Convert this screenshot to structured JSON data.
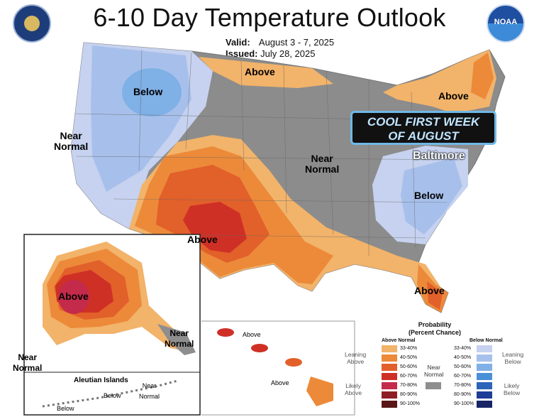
{
  "title": "6-10 Day Temperature Outlook",
  "valid_label": "Valid:",
  "valid_value": "August 3 - 7, 2025",
  "issued_label": "Issued:",
  "issued_value": "July 28, 2025",
  "noaa_logo": "NOAA",
  "banner": {
    "line1": "COOL FIRST WEEK",
    "line2": "OF AUGUST"
  },
  "labels": {
    "above_north": "Above",
    "below_nw": "Below",
    "near_normal_west_1": "Near",
    "near_normal_west_2": "Normal",
    "near_normal_central_1": "Near",
    "near_normal_central_2": "Normal",
    "above_northeast": "Above",
    "baltimore": "Baltimore",
    "below_east": "Below",
    "above_sw": "Above",
    "above_florida": "Above",
    "above_alaska": "Above",
    "near_normal_panhandle_1": "Near",
    "near_normal_panhandle_2": "Normal",
    "near_normal_ak_sw_1": "Near",
    "near_normal_ak_sw_2": "Normal",
    "aleutian_title": "Aleutian Islands",
    "aleutian_below_1": "Below",
    "aleutian_below_2": "Below",
    "aleutian_near_1": "Near",
    "aleutian_near_2": "Normal",
    "hawaii_above_1": "Above",
    "hawaii_above_2": "Above"
  },
  "legend": {
    "title_1": "Probability",
    "title_2": "(Percent Chance)",
    "above_header": "Above Normal",
    "below_header": "Below Normal",
    "near_1": "Near",
    "near_2": "Normal",
    "leaning_above_1": "Leaning",
    "leaning_above_2": "Above",
    "likely_above_1": "Likely",
    "likely_above_2": "Above",
    "leaning_below_1": "Leaning",
    "leaning_below_2": "Below",
    "likely_below_1": "Likely",
    "likely_below_2": "Below",
    "above_bins": [
      {
        "label": "33-40%",
        "color": "#f2b36a"
      },
      {
        "label": "40-50%",
        "color": "#ec8a3a"
      },
      {
        "label": "50-60%",
        "color": "#e2602a"
      },
      {
        "label": "60-70%",
        "color": "#cf3026"
      },
      {
        "label": "70-80%",
        "color": "#c42a4a"
      },
      {
        "label": "80-90%",
        "color": "#8e1e26"
      },
      {
        "label": "90-100%",
        "color": "#5a1616"
      }
    ],
    "below_bins": [
      {
        "label": "33-40%",
        "color": "#c6d2ef"
      },
      {
        "label": "40-50%",
        "color": "#a7c0eb"
      },
      {
        "label": "50-60%",
        "color": "#7fb0e6"
      },
      {
        "label": "60-70%",
        "color": "#4a90d8"
      },
      {
        "label": "70-80%",
        "color": "#2d63b8"
      },
      {
        "label": "80-90%",
        "color": "#1f3c96"
      },
      {
        "label": "90-100%",
        "color": "#172566"
      }
    ],
    "near_color": "#8e8e8e"
  }
}
